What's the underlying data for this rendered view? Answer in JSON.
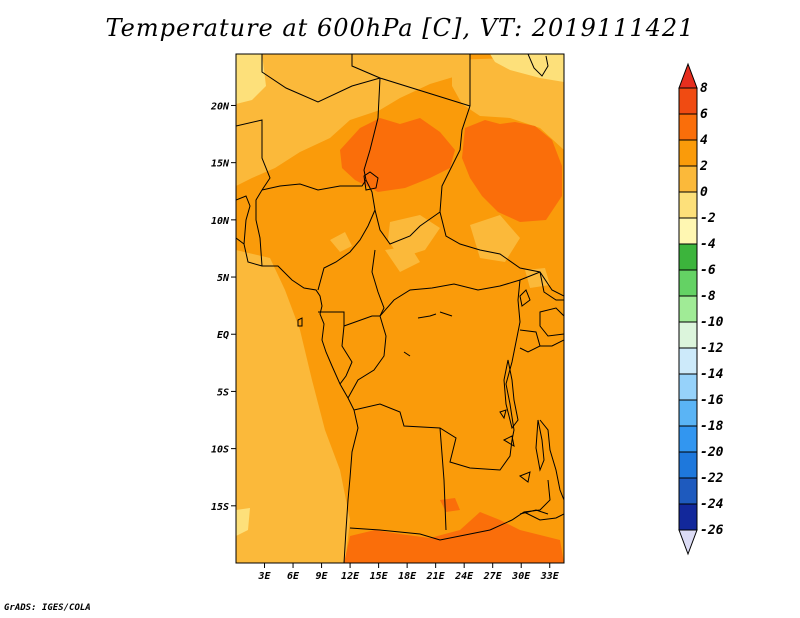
{
  "title": "Temperature at 600hPa [C], VT: 2019111421",
  "credit": "GrADS: IGES/COLA",
  "map": {
    "lon_range": [
      0,
      34.5
    ],
    "lat_range": [
      -20,
      24.5
    ],
    "lat_ticks": [
      {
        "value": 20,
        "label": "20N"
      },
      {
        "value": 15,
        "label": "15N"
      },
      {
        "value": 10,
        "label": "10N"
      },
      {
        "value": 5,
        "label": "5N"
      },
      {
        "value": 0,
        "label": "EQ"
      },
      {
        "value": -5,
        "label": "5S"
      },
      {
        "value": -10,
        "label": "10S"
      },
      {
        "value": -15,
        "label": "15S"
      }
    ],
    "lon_ticks": [
      {
        "value": 3,
        "label": "3E"
      },
      {
        "value": 6,
        "label": "6E"
      },
      {
        "value": 9,
        "label": "9E"
      },
      {
        "value": 12,
        "label": "12E"
      },
      {
        "value": 15,
        "label": "15E"
      },
      {
        "value": 18,
        "label": "18E"
      },
      {
        "value": 21,
        "label": "21E"
      },
      {
        "value": 24,
        "label": "24E"
      },
      {
        "value": 27,
        "label": "27E"
      },
      {
        "value": 30,
        "label": "30E"
      },
      {
        "value": 33,
        "label": "33E"
      }
    ]
  },
  "colorbar": {
    "unit": "C",
    "levels": [
      8,
      6,
      4,
      2,
      0,
      -2,
      -4,
      -6,
      -8,
      -10,
      -12,
      -14,
      -16,
      -18,
      -20,
      -22,
      -24,
      -26
    ],
    "bins": [
      {
        "range": "above 8",
        "color": "#e62e1e"
      },
      {
        "range": "6 to 8",
        "color": "#f04b12"
      },
      {
        "range": "4 to 6",
        "color": "#fa6e0a"
      },
      {
        "range": "2 to 4",
        "color": "#fa9b0a"
      },
      {
        "range": "0 to 2",
        "color": "#fbb93a"
      },
      {
        "range": "-2 to 0",
        "color": "#fde07a"
      },
      {
        "range": "-4 to -2",
        "color": "#fff7b2"
      },
      {
        "range": "-6 to -4",
        "color": "#3cb43c"
      },
      {
        "range": "-8 to -6",
        "color": "#64d264"
      },
      {
        "range": "-10 to -8",
        "color": "#a0eb96"
      },
      {
        "range": "-12 to -10",
        "color": "#dcf5dc"
      },
      {
        "range": "-14 to -12",
        "color": "#cdeafa"
      },
      {
        "range": "-16 to -14",
        "color": "#96d2fa"
      },
      {
        "range": "-18 to -16",
        "color": "#5ab4f5"
      },
      {
        "range": "-20 to -18",
        "color": "#3296f0"
      },
      {
        "range": "-22 to -20",
        "color": "#1e78dc"
      },
      {
        "range": "-24 to -22",
        "color": "#1e5abe"
      },
      {
        "range": "-26 to -24",
        "color": "#12289b"
      },
      {
        "range": "below -26",
        "color": "#dcdcf5"
      }
    ]
  },
  "field_colors": {
    "base": "#fa9b0a",
    "cool": "#fbb93a",
    "coolest": "#fde07a",
    "warm": "#fa6e0a"
  }
}
